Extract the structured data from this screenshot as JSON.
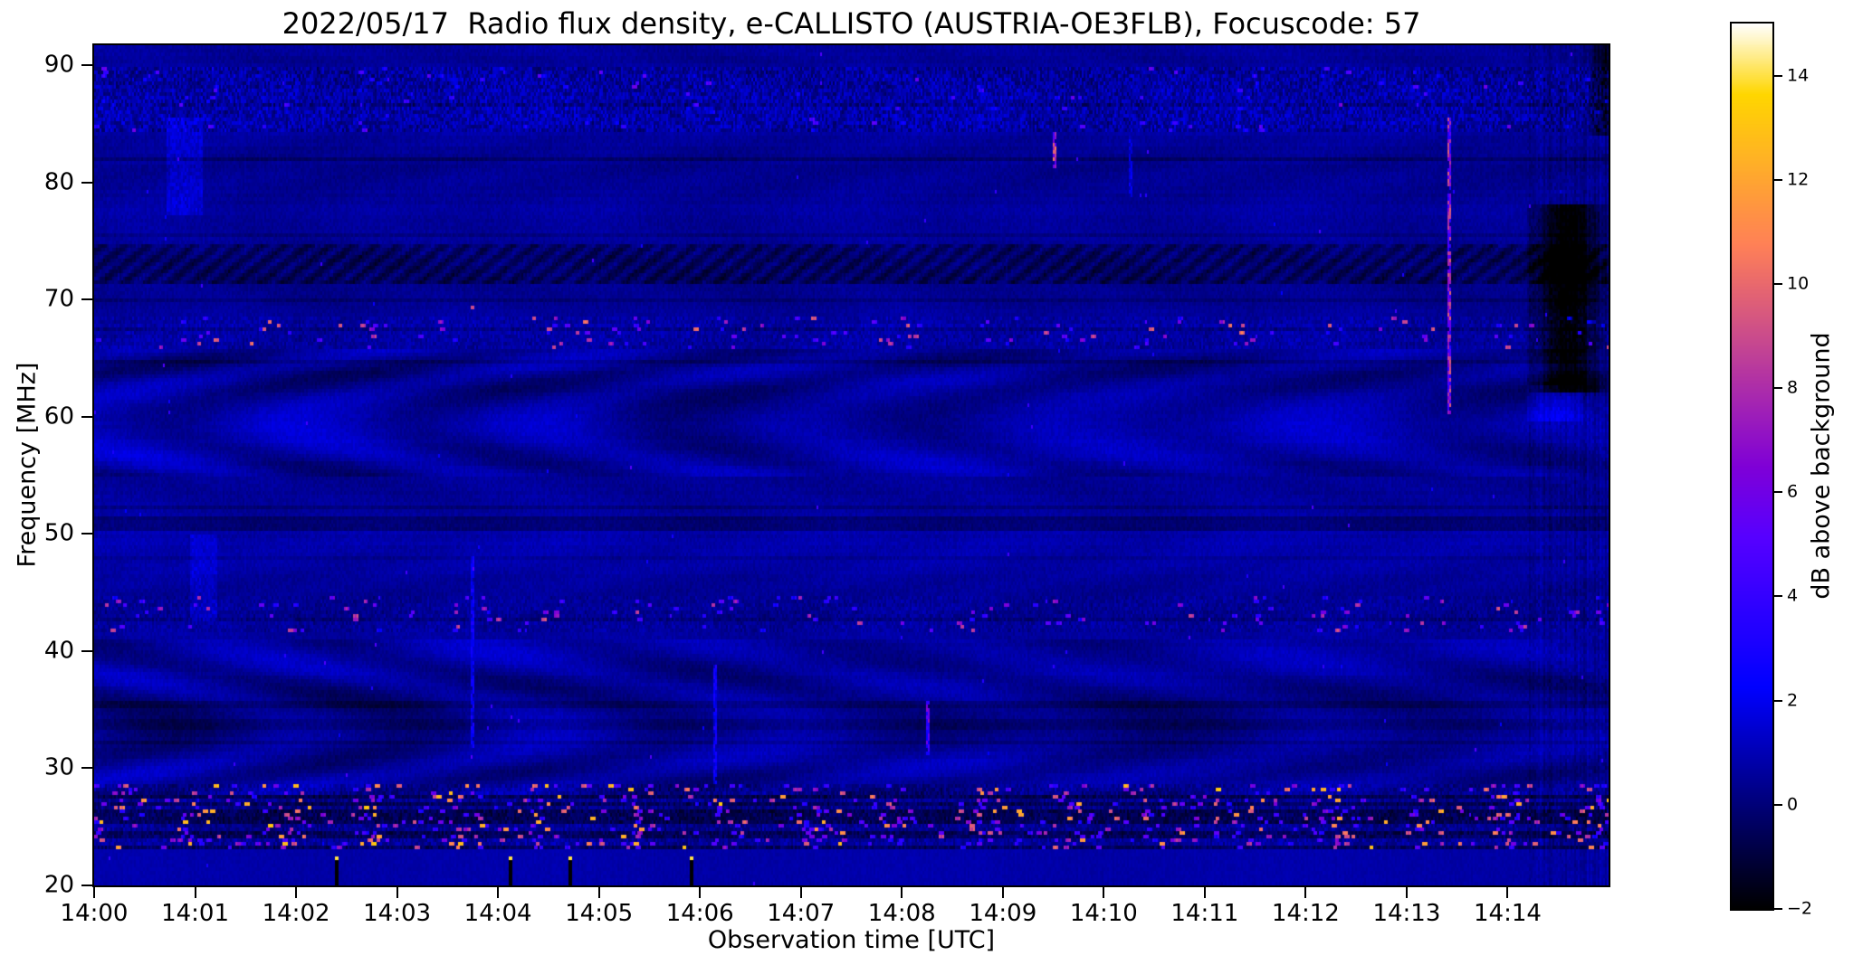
{
  "chart_data": {
    "type": "heatmap",
    "title": "2022/05/17  Radio flux density, e-CALLISTO (AUSTRIA-OE3FLB), Focuscode: 57",
    "xlabel": "Observation time [UTC]",
    "ylabel": "Frequency [MHz]",
    "colorbar_label": "dB above background",
    "x_range_minutes": [
      0,
      15
    ],
    "y_range_mhz": [
      20,
      91.7
    ],
    "colorbar_range_db": [
      -2,
      15
    ],
    "background_level_db": 0.55,
    "grid": false,
    "x_ticks": [
      {
        "label": "14:00",
        "minute": 0
      },
      {
        "label": "14:01",
        "minute": 1
      },
      {
        "label": "14:02",
        "minute": 2
      },
      {
        "label": "14:03",
        "minute": 3
      },
      {
        "label": "14:04",
        "minute": 4
      },
      {
        "label": "14:05",
        "minute": 5
      },
      {
        "label": "14:06",
        "minute": 6
      },
      {
        "label": "14:07",
        "minute": 7
      },
      {
        "label": "14:08",
        "minute": 8
      },
      {
        "label": "14:09",
        "minute": 9
      },
      {
        "label": "14:10",
        "minute": 10
      },
      {
        "label": "14:11",
        "minute": 11
      },
      {
        "label": "14:12",
        "minute": 12
      },
      {
        "label": "14:13",
        "minute": 13
      },
      {
        "label": "14:14",
        "minute": 14
      }
    ],
    "y_ticks": [
      {
        "label": "90",
        "value": 90
      },
      {
        "label": "80",
        "value": 80
      },
      {
        "label": "70",
        "value": 70
      },
      {
        "label": "60",
        "value": 60
      },
      {
        "label": "50",
        "value": 50
      },
      {
        "label": "40",
        "value": 40
      },
      {
        "label": "30",
        "value": 30
      },
      {
        "label": "20",
        "value": 20
      }
    ],
    "colorbar_ticks": [
      {
        "label": "14",
        "value": 14
      },
      {
        "label": "12",
        "value": 12
      },
      {
        "label": "10",
        "value": 10
      },
      {
        "label": "8",
        "value": 8
      },
      {
        "label": "6",
        "value": 6
      },
      {
        "label": "4",
        "value": 4
      },
      {
        "label": "2",
        "value": 2
      },
      {
        "label": "0",
        "value": 0
      },
      {
        "label": "−2",
        "value": -2
      }
    ],
    "colormap_stops": [
      {
        "t": 0.0,
        "color": "#000000"
      },
      {
        "t": 0.05,
        "color": "#000033"
      },
      {
        "t": 0.1,
        "color": "#000066"
      },
      {
        "t": 0.15,
        "color": "#000099"
      },
      {
        "t": 0.2,
        "color": "#0000cc"
      },
      {
        "t": 0.25,
        "color": "#0000ff"
      },
      {
        "t": 0.3,
        "color": "#1a00ff"
      },
      {
        "t": 0.35,
        "color": "#3300ff"
      },
      {
        "t": 0.42,
        "color": "#5700ff"
      },
      {
        "t": 0.46,
        "color": "#6b00eb"
      },
      {
        "t": 0.5,
        "color": "#8000d6"
      },
      {
        "t": 0.55,
        "color": "#991abd"
      },
      {
        "t": 0.6,
        "color": "#b333a3"
      },
      {
        "t": 0.65,
        "color": "#cc4d8a"
      },
      {
        "t": 0.7,
        "color": "#e66670"
      },
      {
        "t": 0.75,
        "color": "#ff8057"
      },
      {
        "t": 0.8,
        "color": "#ff993d"
      },
      {
        "t": 0.85,
        "color": "#ffb324"
      },
      {
        "t": 0.9,
        "color": "#ffcc0a"
      },
      {
        "t": 0.92,
        "color": "#ffd600"
      },
      {
        "t": 0.96,
        "color": "#ffeb80"
      },
      {
        "t": 1.0,
        "color": "#ffffff"
      }
    ],
    "features": [
      {
        "kind": "speckle_band",
        "name": "high-band-noise",
        "f": [
          84.3,
          89.9
        ],
        "base": 0.05,
        "noise": 0.95,
        "spike_chance": 0.008,
        "spike_db": [
          2,
          6
        ]
      },
      {
        "kind": "diagonal_dark_band",
        "name": "73mhz-absorption-band",
        "f": [
          71.4,
          74.6
        ],
        "depth": 1.25
      },
      {
        "kind": "speckle_band",
        "name": "67mhz-rfi-band",
        "f": [
          65.8,
          68.6
        ],
        "base": 0.1,
        "noise": 0.45,
        "spike_chance": 0.022,
        "spike_db": [
          3,
          10
        ]
      },
      {
        "kind": "wave_band",
        "name": "60mhz-ripples",
        "f": [
          55.0,
          65.6
        ],
        "amp": 0.5
      },
      {
        "kind": "dark_line",
        "name": "51mhz-dark-line",
        "f": [
          50.3,
          51.5
        ],
        "depth": 0.8
      },
      {
        "kind": "speckle_band",
        "name": "43mhz-rfi-band",
        "f": [
          41.6,
          44.8
        ],
        "base": 0.0,
        "noise": 0.4,
        "spike_chance": 0.018,
        "spike_db": [
          3,
          9
        ]
      },
      {
        "kind": "dark_line",
        "name": "34mhz-dark-line",
        "f": [
          33.3,
          34.0
        ],
        "depth": 0.45
      },
      {
        "kind": "wave_band",
        "name": "low-band-ripples",
        "f": [
          27.8,
          41.0
        ],
        "amp": 0.45
      },
      {
        "kind": "rfi_band",
        "name": "shortwave-rfi-band",
        "f": [
          23.0,
          28.8
        ],
        "spike_chance": 0.05,
        "spike_db": [
          3.5,
          13
        ],
        "dark_row_chance": 0.35
      },
      {
        "kind": "calm_band",
        "name": "bottom-calm-band",
        "f": [
          20.0,
          23.0
        ],
        "base": 0.8
      }
    ],
    "events": [
      {
        "kind": "vline",
        "name": "bright-burst-line",
        "t": 13.4,
        "f": [
          60.5,
          85.5
        ],
        "db": 7,
        "w": 2
      },
      {
        "kind": "vline",
        "name": "small-burst-1409",
        "t": 9.5,
        "f": [
          81.5,
          84.2
        ],
        "db": 8,
        "w": 2
      },
      {
        "kind": "vline",
        "name": "faint-line-1404",
        "t": 3.74,
        "f": [
          32,
          48
        ],
        "db": 2.3,
        "w": 2
      },
      {
        "kind": "dot",
        "name": "orange-dot-69mhz",
        "t": 3.74,
        "f": 69.3,
        "db": 9
      },
      {
        "kind": "vline",
        "name": "faint-line-1406",
        "t": 6.13,
        "f": [
          29,
          39
        ],
        "db": 2.3,
        "w": 2
      },
      {
        "kind": "vline",
        "name": "pink-line-1408",
        "t": 8.24,
        "f": [
          31.5,
          35.8
        ],
        "db": 5,
        "w": 2
      },
      {
        "kind": "vline",
        "name": "faint-line-1410",
        "t": 10.25,
        "f": [
          79,
          84
        ],
        "db": 2,
        "w": 2
      },
      {
        "kind": "smudge",
        "name": "blue-smudge-1401-high",
        "t": [
          0.72,
          1.05
        ],
        "f": [
          77.5,
          85.5
        ],
        "db": 1.3
      },
      {
        "kind": "smudge",
        "name": "blue-smudge-1401-mid",
        "t": [
          0.95,
          1.2
        ],
        "f": [
          43,
          50
        ],
        "db": 1.1
      },
      {
        "kind": "dot",
        "name": "yellow-marker-1",
        "t": 2.39,
        "f": 22.6,
        "db": 14
      },
      {
        "kind": "dot",
        "name": "yellow-marker-2",
        "t": 4.11,
        "f": 22.6,
        "db": 14
      },
      {
        "kind": "dot",
        "name": "yellow-marker-3",
        "t": 4.7,
        "f": 22.6,
        "db": 14
      },
      {
        "kind": "dot",
        "name": "yellow-marker-4",
        "t": 5.9,
        "f": 22.6,
        "db": 14
      },
      {
        "kind": "tick_black",
        "name": "black-tick-1",
        "t": 2.39,
        "f": [
          20,
          22.2
        ]
      },
      {
        "kind": "tick_black",
        "name": "black-tick-2",
        "t": 4.11,
        "f": [
          20,
          22.2
        ]
      },
      {
        "kind": "tick_black",
        "name": "black-tick-3",
        "t": 4.7,
        "f": [
          20,
          22.2
        ]
      },
      {
        "kind": "tick_black",
        "name": "black-tick-4",
        "t": 5.9,
        "f": [
          20,
          22.2
        ]
      },
      {
        "kind": "edge_disturbance",
        "name": "end-of-file-disturbance",
        "t": [
          14.2,
          15.0
        ],
        "black_blob_f": [
          62,
          78
        ],
        "black_blob_center_t": 14.6,
        "bright_f": [
          59.5,
          62.5
        ],
        "dark_top_f": [
          84,
          91.7
        ],
        "dark_top_t": 14.75
      }
    ],
    "colors": {
      "figure_background": "#ffffff",
      "text": "#000000",
      "spines": "#000000"
    }
  }
}
